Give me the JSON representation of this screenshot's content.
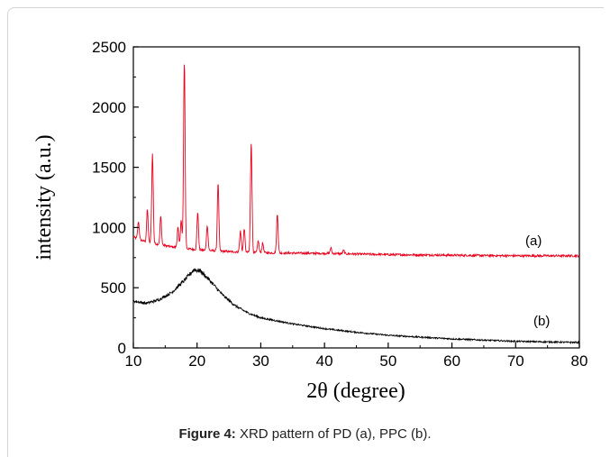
{
  "caption": {
    "label": "Figure 4:",
    "text": " XRD pattern of PD (a), PPC (b)."
  },
  "chart_data": {
    "type": "line",
    "xlabel": "2θ (degree)",
    "ylabel": "intensity (a.u.)",
    "xlim": [
      10,
      80
    ],
    "ylim": [
      0,
      2500
    ],
    "xticks": [
      10,
      20,
      30,
      40,
      50,
      60,
      70,
      80
    ],
    "yticks": [
      0,
      500,
      1000,
      1500,
      2000,
      2500
    ],
    "grid": false,
    "series": [
      {
        "name": "(a)",
        "color": "#e8001c",
        "baseline": [
          [
            10,
            920
          ],
          [
            12,
            880
          ],
          [
            16,
            840
          ],
          [
            20,
            815
          ],
          [
            25,
            800
          ],
          [
            30,
            790
          ],
          [
            40,
            785
          ],
          [
            50,
            775
          ],
          [
            60,
            770
          ],
          [
            70,
            765
          ],
          [
            80,
            765
          ]
        ],
        "peaks": [
          [
            10.8,
            1050
          ],
          [
            12.2,
            1150
          ],
          [
            13,
            1610
          ],
          [
            14.3,
            1090
          ],
          [
            17,
            1000
          ],
          [
            17.5,
            1060
          ],
          [
            18,
            2380
          ],
          [
            20.1,
            1130
          ],
          [
            21.6,
            1020
          ],
          [
            23.3,
            1370
          ],
          [
            26.8,
            970
          ],
          [
            27.4,
            990
          ],
          [
            28.5,
            1710
          ],
          [
            29.6,
            890
          ],
          [
            30.3,
            870
          ],
          [
            32.6,
            1110
          ],
          [
            41,
            830
          ],
          [
            43,
            810
          ]
        ]
      },
      {
        "name": "(b)",
        "color": "#000000",
        "baseline": [
          [
            10,
            390
          ],
          [
            12,
            370
          ],
          [
            14,
            400
          ],
          [
            16,
            460
          ],
          [
            18,
            560
          ],
          [
            19.5,
            650
          ],
          [
            20.5,
            640
          ],
          [
            22,
            560
          ],
          [
            24,
            440
          ],
          [
            26,
            350
          ],
          [
            28,
            290
          ],
          [
            30,
            250
          ],
          [
            35,
            200
          ],
          [
            40,
            160
          ],
          [
            45,
            130
          ],
          [
            50,
            105
          ],
          [
            55,
            90
          ],
          [
            60,
            75
          ],
          [
            70,
            55
          ],
          [
            80,
            45
          ]
        ],
        "peaks": []
      }
    ]
  }
}
